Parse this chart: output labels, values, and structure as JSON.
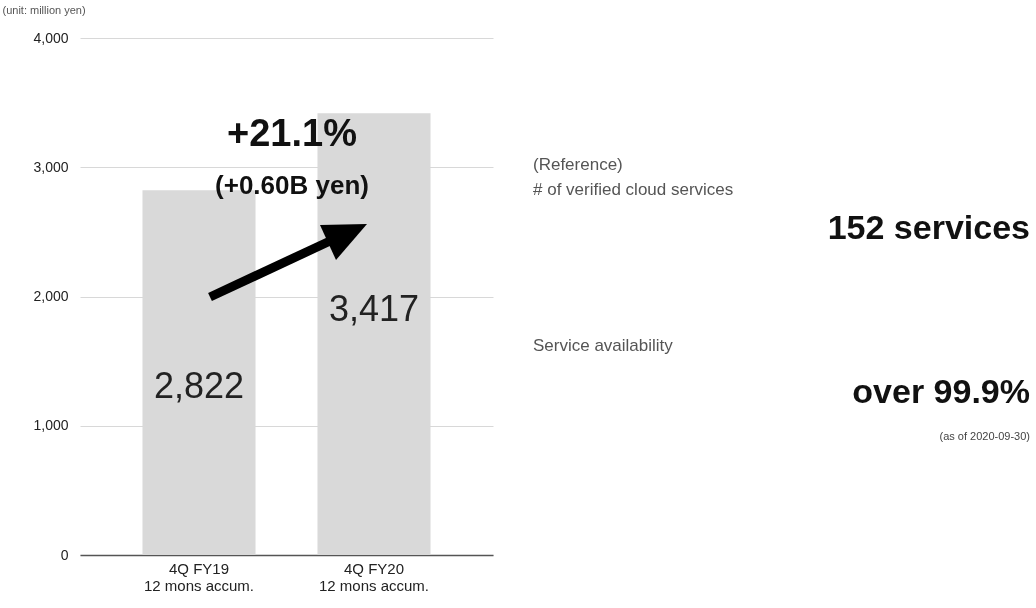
{
  "chart_data": [
    {
      "type": "bar",
      "ylabel": "(unit: million yen)",
      "categories": [
        "4Q FY19\n12  mons accum.",
        "4Q FY20\n12  mons accum."
      ],
      "values": [
        2822,
        3417
      ],
      "color": "#d9d9d9",
      "ylim": [
        0,
        4000
      ],
      "yticks": [
        0,
        {
          "value": 1000,
          "label": "1,000"
        },
        {
          "value": 2000,
          "label": "2,000"
        },
        {
          "value": 3000,
          "label": "3,000"
        },
        {
          "value": 4000,
          "label": "4,000"
        }
      ],
      "grid": "y",
      "value_labels": [
        "2,822",
        "3,417"
      ],
      "annotations": [
        "+21.1%",
        "(+0.60B yen)"
      ]
    },
    {
      "type": "other",
      "title": "(Reference)",
      "annotations": [
        "# of verified cloud services",
        "152 services",
        "Service availability",
        "over 99.9%",
        "(as of 2020-09-30)"
      ]
    }
  ]
}
